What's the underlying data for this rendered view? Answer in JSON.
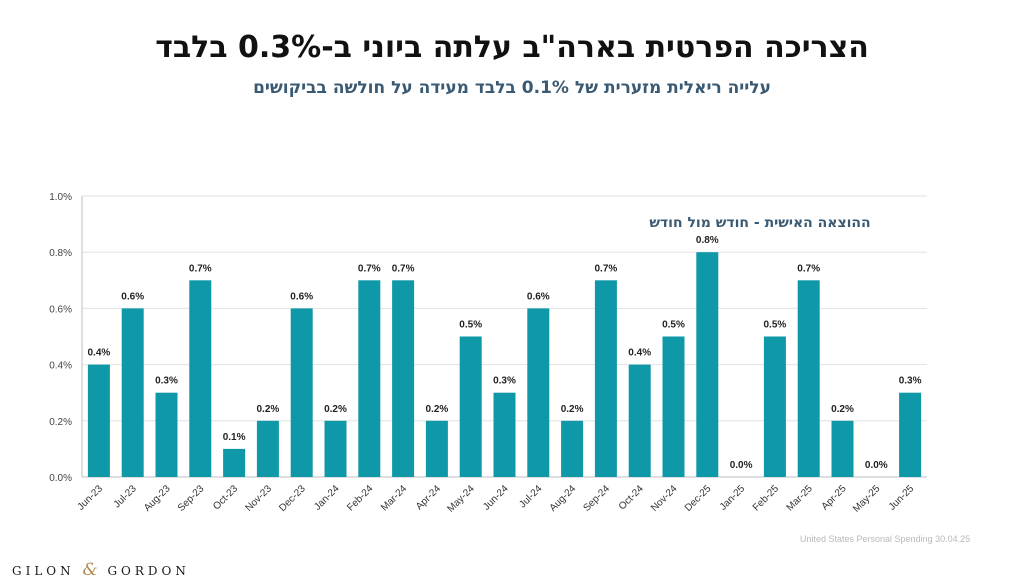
{
  "header": {
    "title": "הצריכה הפרטית בארה\"ב עלתה ביוני ב-0.3% בלבד",
    "subtitle": "עלייה ריאלית מזערית של 0.1% בלבד מעידה על חולשה בביקושים"
  },
  "footer": {
    "source": "United States Personal Spending 30.04.25",
    "logo_left": "GILON",
    "logo_amp": "&",
    "logo_right": "GORDON"
  },
  "chart_data": {
    "type": "bar",
    "title": "ההוצאה האישית - חודש מול חודש",
    "categories": [
      "Jun-23",
      "Jul-23",
      "Aug-23",
      "Sep-23",
      "Oct-23",
      "Nov-23",
      "Dec-23",
      "Jan-24",
      "Feb-24",
      "Mar-24",
      "Apr-24",
      "May-24",
      "Jun-24",
      "Jul-24",
      "Aug-24",
      "Sep-24",
      "Oct-24",
      "Nov-24",
      "Dec-25",
      "Jan-25",
      "Feb-25",
      "Mar-25",
      "Apr-25",
      "May-25",
      "Jun-25"
    ],
    "values": [
      0.4,
      0.6,
      0.3,
      0.7,
      0.1,
      0.2,
      0.6,
      0.2,
      0.7,
      0.7,
      0.2,
      0.5,
      0.3,
      0.6,
      0.2,
      0.7,
      0.4,
      0.5,
      0.8,
      0.0,
      0.5,
      0.7,
      0.2,
      0.0,
      0.3
    ],
    "data_labels": [
      "0.4%",
      "0.6%",
      "0.3%",
      "0.7%",
      "0.1%",
      "0.2%",
      "0.6%",
      "0.2%",
      "0.7%",
      "0.7%",
      "0.2%",
      "0.5%",
      "0.3%",
      "0.6%",
      "0.2%",
      "0.7%",
      "0.4%",
      "0.5%",
      "0.8%",
      "0.0%",
      "0.5%",
      "0.7%",
      "0.2%",
      "0.0%",
      "0.3%"
    ],
    "yticks": [
      0,
      0.2,
      0.4,
      0.6,
      0.8,
      1.0
    ],
    "ytick_labels": [
      "0.0%",
      "0.2%",
      "0.4%",
      "0.6%",
      "0.8%",
      "1.0%"
    ],
    "ylim": [
      0,
      1.0
    ],
    "grid": true,
    "xlabel": "",
    "ylabel": "",
    "bar_color": "#0f98a8"
  }
}
